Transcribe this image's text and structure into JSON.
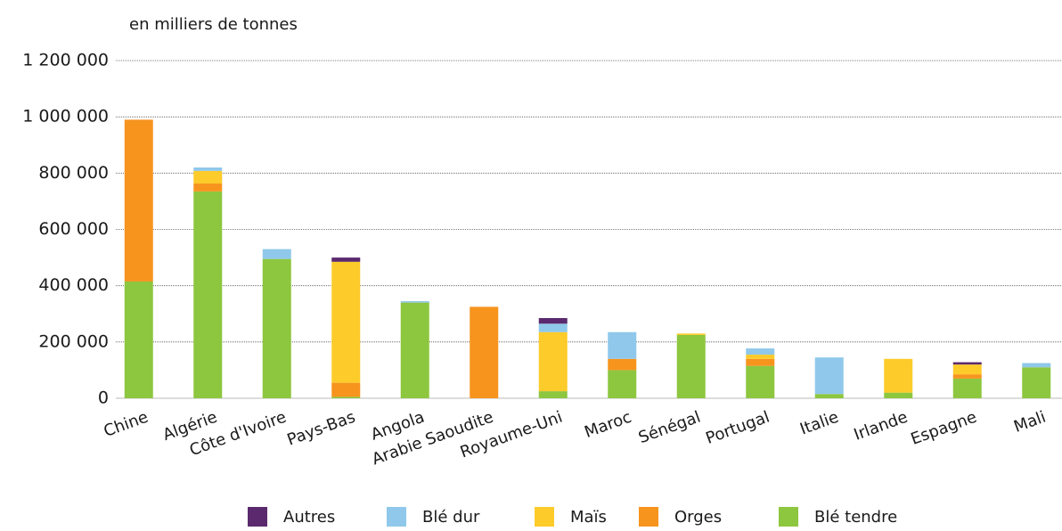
{
  "chart_data": {
    "type": "bar",
    "stacked": true,
    "y_label": "en milliers de tonnes",
    "categories": [
      "Chine",
      "Algérie",
      "Côte d'Ivoire",
      "Pays-Bas",
      "Angola",
      "Arabie Saoudite",
      "Royaume-Uni",
      "Maroc",
      "Sénégal",
      "Portugal",
      "Italie",
      "Irlande",
      "Espagne",
      "Mali"
    ],
    "series": [
      {
        "name": "Autres",
        "color": "#5b2a6e",
        "values": [
          0,
          0,
          0,
          15000,
          0,
          0,
          20000,
          0,
          0,
          0,
          0,
          0,
          8000,
          0
        ]
      },
      {
        "name": "Blé dur",
        "color": "#8fc8ea",
        "values": [
          0,
          12000,
          35000,
          0,
          5000,
          0,
          30000,
          95000,
          0,
          22000,
          130000,
          0,
          0,
          15000
        ]
      },
      {
        "name": "Maïs",
        "color": "#fdcb2a",
        "values": [
          0,
          45000,
          0,
          430000,
          0,
          0,
          210000,
          0,
          5000,
          15000,
          0,
          120000,
          35000,
          0
        ]
      },
      {
        "name": "Orges",
        "color": "#f7941e",
        "values": [
          575000,
          28000,
          0,
          50000,
          0,
          325000,
          0,
          40000,
          0,
          25000,
          0,
          0,
          15000,
          0
        ]
      },
      {
        "name": "Blé tendre",
        "color": "#8dc63f",
        "values": [
          415000,
          735000,
          495000,
          5000,
          340000,
          0,
          25000,
          100000,
          225000,
          115000,
          15000,
          20000,
          70000,
          110000
        ]
      }
    ],
    "ylim": [
      0,
      1200000
    ],
    "yticks": [
      0,
      {
        "value": 200000,
        "label": "200 000"
      },
      {
        "value": 400000,
        "label": "400 000"
      },
      {
        "value": 600000,
        "label": "600 000"
      },
      {
        "value": 800000,
        "label": "800 000"
      },
      {
        "value": 1000000,
        "label": "1 000 000"
      },
      {
        "value": 1200000,
        "label": "1 200 000"
      }
    ],
    "grid": true,
    "legend": "bottom"
  }
}
